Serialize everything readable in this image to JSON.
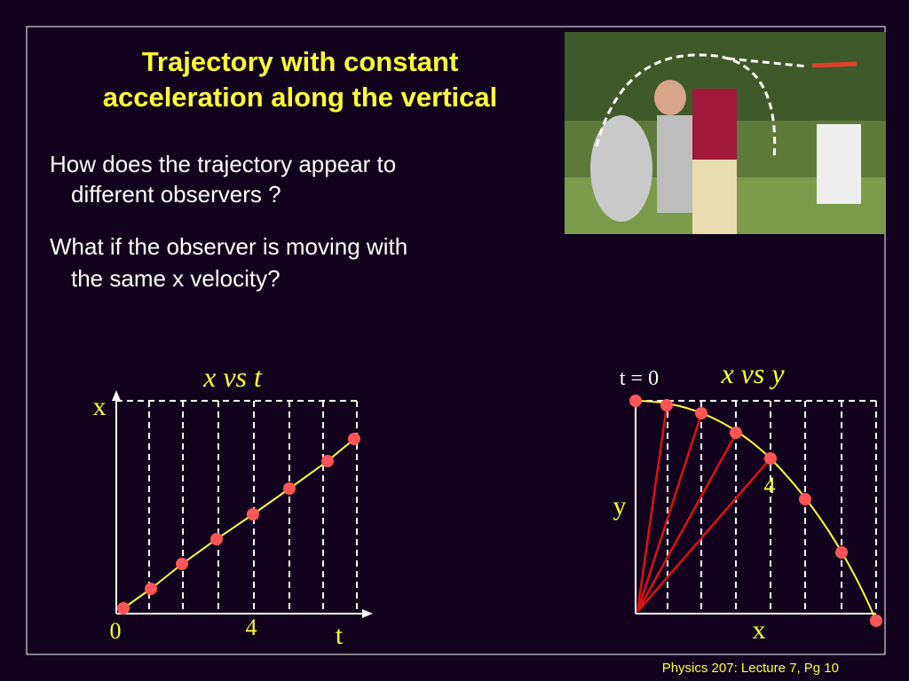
{
  "header": {
    "title_lines": [
      "Trajectory with constant",
      "acceleration along the vertical"
    ]
  },
  "bullets": [
    [
      "How does the trajectory appear to",
      "different observers ?"
    ],
    [
      "What if the observer is moving with",
      "the same x velocity?"
    ]
  ],
  "left_diagram": {
    "title": "x vs t",
    "y_axis_label": "x",
    "x_axis_label": "t",
    "origin_label": "0",
    "mark_label": "4"
  },
  "right_diagram": {
    "title": "x vs y",
    "start_label": "t = 0",
    "y_axis_label": "y",
    "x_axis_label": "x",
    "mark_label": "4"
  },
  "footer": "Physics 207: Lecture 7, Pg 10"
}
